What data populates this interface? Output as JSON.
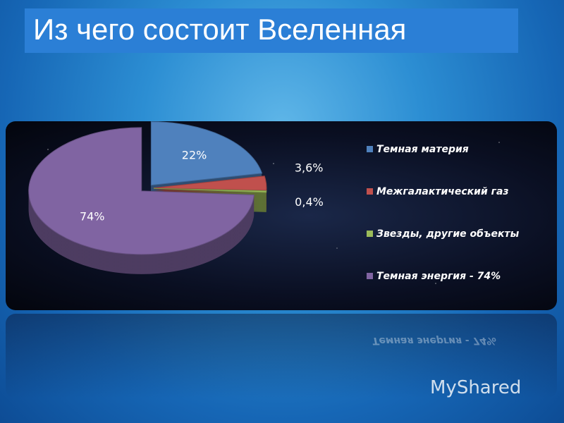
{
  "title": "Из чего состоит Вселенная",
  "watermark": "MyShared",
  "chart_data": {
    "type": "pie",
    "categories": [
      "Темная материя",
      "Межгалактический газ",
      "Звезды, другие объекты",
      "Темная энергия - 74%"
    ],
    "values": [
      22,
      3.6,
      0.4,
      74
    ],
    "value_labels": [
      "22%",
      "3,6%",
      "0,4%",
      "74%"
    ],
    "colors": [
      "#4f81bd",
      "#c0504d",
      "#9bbb59",
      "#8064a2"
    ],
    "legend": "right"
  }
}
